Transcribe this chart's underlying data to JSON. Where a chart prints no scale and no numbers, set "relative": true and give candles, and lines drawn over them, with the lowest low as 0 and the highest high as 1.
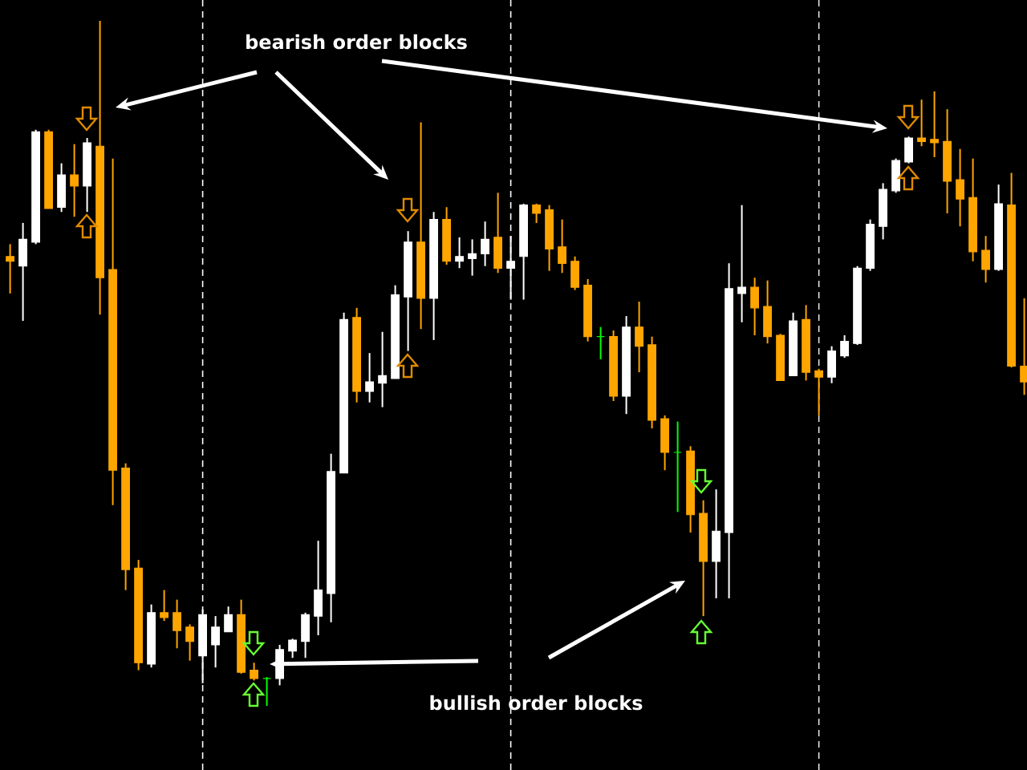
{
  "chart_data": {
    "type": "candlestick",
    "relative": true,
    "grid": "x",
    "categories": [
      null,
      null,
      null,
      null,
      null,
      null,
      null,
      null,
      null,
      null,
      null,
      null,
      null,
      null,
      null,
      null,
      null,
      null,
      null,
      null,
      null,
      null,
      null,
      null,
      null,
      null,
      null,
      null,
      null,
      null,
      null,
      null,
      null,
      null,
      null,
      null,
      null,
      null,
      null,
      null,
      null,
      null,
      null,
      null,
      null,
      null,
      null,
      null,
      null,
      null,
      null,
      null,
      null,
      null,
      null,
      null,
      null,
      null,
      null,
      null,
      null,
      null,
      null,
      null,
      null,
      null,
      null,
      null,
      null,
      null,
      null,
      null,
      null,
      null,
      null,
      null,
      null,
      null,
      null,
      null
    ],
    "ohlc": [
      [
        0.656,
        0.674,
        0.602,
        0.649
      ],
      [
        0.642,
        0.705,
        0.562,
        0.681
      ],
      [
        0.677,
        0.841,
        0.674,
        0.838
      ],
      [
        0.838,
        0.841,
        0.726,
        0.726
      ],
      [
        0.728,
        0.792,
        0.721,
        0.775
      ],
      [
        0.775,
        0.82,
        0.714,
        0.759
      ],
      [
        0.759,
        0.829,
        0.721,
        0.822
      ],
      [
        0.817,
        1.0,
        0.571,
        0.625
      ],
      [
        0.637,
        0.799,
        0.293,
        0.344
      ],
      [
        0.347,
        0.354,
        0.169,
        0.199
      ],
      [
        0.201,
        0.213,
        0.052,
        0.063
      ],
      [
        0.061,
        0.148,
        0.056,
        0.136
      ],
      [
        0.136,
        0.169,
        0.124,
        0.129
      ],
      [
        0.136,
        0.155,
        0.084,
        0.11
      ],
      [
        0.115,
        0.119,
        0.066,
        0.094
      ],
      [
        0.073,
        0.141,
        0.033,
        0.133
      ],
      [
        0.089,
        0.131,
        0.056,
        0.115
      ],
      [
        0.108,
        0.145,
        0.108,
        0.133
      ],
      [
        0.133,
        0.155,
        0.047,
        0.049
      ],
      [
        0.052,
        0.063,
        0.037,
        0.04
      ],
      [
        0.04,
        0.042,
        0.0,
        0.04
      ],
      [
        0.04,
        0.089,
        0.03,
        0.082
      ],
      [
        0.08,
        0.098,
        0.07,
        0.096
      ],
      [
        0.094,
        0.136,
        0.07,
        0.133
      ],
      [
        0.131,
        0.241,
        0.103,
        0.169
      ],
      [
        0.164,
        0.368,
        0.122,
        0.342
      ],
      [
        0.34,
        0.574,
        0.34,
        0.564
      ],
      [
        0.567,
        0.581,
        0.443,
        0.459
      ],
      [
        0.459,
        0.515,
        0.443,
        0.473
      ],
      [
        0.471,
        0.546,
        0.436,
        0.482
      ],
      [
        0.478,
        0.614,
        0.478,
        0.6
      ],
      [
        0.597,
        0.693,
        0.518,
        0.677
      ],
      [
        0.677,
        0.852,
        0.55,
        0.595
      ],
      [
        0.595,
        0.721,
        0.534,
        0.71
      ],
      [
        0.71,
        0.728,
        0.644,
        0.649
      ],
      [
        0.649,
        0.684,
        0.639,
        0.656
      ],
      [
        0.653,
        0.681,
        0.628,
        0.66
      ],
      [
        0.66,
        0.707,
        0.642,
        0.681
      ],
      [
        0.684,
        0.749,
        0.632,
        0.639
      ],
      [
        0.639,
        0.686,
        0.593,
        0.649
      ],
      [
        0.656,
        0.733,
        0.593,
        0.731
      ],
      [
        0.731,
        0.733,
        0.705,
        0.719
      ],
      [
        0.724,
        0.731,
        0.635,
        0.667
      ],
      [
        0.67,
        0.71,
        0.632,
        0.646
      ],
      [
        0.649,
        0.656,
        0.607,
        0.611
      ],
      [
        0.614,
        0.623,
        0.532,
        0.539
      ],
      [
        0.539,
        0.553,
        0.506,
        0.539
      ],
      [
        0.539,
        0.548,
        0.445,
        0.452
      ],
      [
        0.452,
        0.569,
        0.426,
        0.553
      ],
      [
        0.553,
        0.59,
        0.487,
        0.525
      ],
      [
        0.527,
        0.539,
        0.405,
        0.417
      ],
      [
        0.419,
        0.424,
        0.344,
        0.37
      ],
      [
        0.37,
        0.415,
        0.283,
        0.37
      ],
      [
        0.372,
        0.379,
        0.253,
        0.279
      ],
      [
        0.281,
        0.3,
        0.131,
        0.211
      ],
      [
        0.211,
        0.316,
        0.157,
        0.255
      ],
      [
        0.253,
        0.646,
        0.157,
        0.609
      ],
      [
        0.602,
        0.731,
        0.56,
        0.611
      ],
      [
        0.611,
        0.625,
        0.541,
        0.581
      ],
      [
        0.583,
        0.621,
        0.529,
        0.539
      ],
      [
        0.541,
        0.543,
        0.475,
        0.475
      ],
      [
        0.482,
        0.574,
        0.482,
        0.562
      ],
      [
        0.564,
        0.585,
        0.475,
        0.487
      ],
      [
        0.489,
        0.492,
        0.424,
        0.48
      ],
      [
        0.48,
        0.525,
        0.471,
        0.518
      ],
      [
        0.511,
        0.541,
        0.508,
        0.532
      ],
      [
        0.529,
        0.642,
        0.527,
        0.639
      ],
      [
        0.639,
        0.71,
        0.635,
        0.703
      ],
      [
        0.7,
        0.763,
        0.681,
        0.754
      ],
      [
        0.752,
        0.799,
        0.749,
        0.796
      ],
      [
        0.794,
        0.831,
        0.792,
        0.829
      ],
      [
        0.829,
        0.885,
        0.817,
        0.824
      ],
      [
        0.827,
        0.897,
        0.801,
        0.822
      ],
      [
        0.824,
        0.871,
        0.719,
        0.766
      ],
      [
        0.768,
        0.813,
        0.7,
        0.74
      ],
      [
        0.742,
        0.799,
        0.649,
        0.663
      ],
      [
        0.665,
        0.686,
        0.618,
        0.637
      ],
      [
        0.637,
        0.761,
        0.635,
        0.733
      ],
      [
        0.731,
        0.778,
        0.494,
        0.496
      ],
      [
        0.496,
        0.595,
        0.454,
        0.473
      ]
    ],
    "colors": [
      "#ffa500",
      "#ffffff",
      "#ffffff",
      "#ffa500",
      "#ffffff",
      "#ffa500",
      "#ffffff",
      "#ffa500",
      "#ffa500",
      "#ffa500",
      "#ffa500",
      "#ffffff",
      "#ffa500",
      "#ffa500",
      "#ffa500",
      "#ffffff",
      "#ffffff",
      "#ffffff",
      "#ffa500",
      "#ffa500",
      "#00ff00",
      "#ffffff",
      "#ffffff",
      "#ffffff",
      "#ffffff",
      "#ffffff",
      "#ffffff",
      "#ffa500",
      "#ffffff",
      "#ffffff",
      "#ffffff",
      "#ffffff",
      "#ffa500",
      "#ffffff",
      "#ffa500",
      "#ffffff",
      "#ffffff",
      "#ffffff",
      "#ffa500",
      "#ffffff",
      "#ffffff",
      "#ffa500",
      "#ffa500",
      "#ffa500",
      "#ffa500",
      "#ffa500",
      "#00ff00",
      "#ffa500",
      "#ffffff",
      "#ffa500",
      "#ffa500",
      "#ffa500",
      "#00ff00",
      "#ffa500",
      "#ffa500",
      "#ffffff",
      "#ffffff",
      "#ffffff",
      "#ffa500",
      "#ffa500",
      "#ffa500",
      "#ffffff",
      "#ffa500",
      "#ffa500",
      "#ffffff",
      "#ffffff",
      "#ffffff",
      "#ffffff",
      "#ffffff",
      "#ffffff",
      "#ffffff",
      "#ffa500",
      "#ffa500",
      "#ffa500",
      "#ffa500",
      "#ffa500",
      "#ffa500",
      "#ffffff",
      "#ffa500",
      "#ffa500"
    ],
    "annotations": [
      "bearish order blocks",
      "bullish order blocks"
    ]
  }
}
